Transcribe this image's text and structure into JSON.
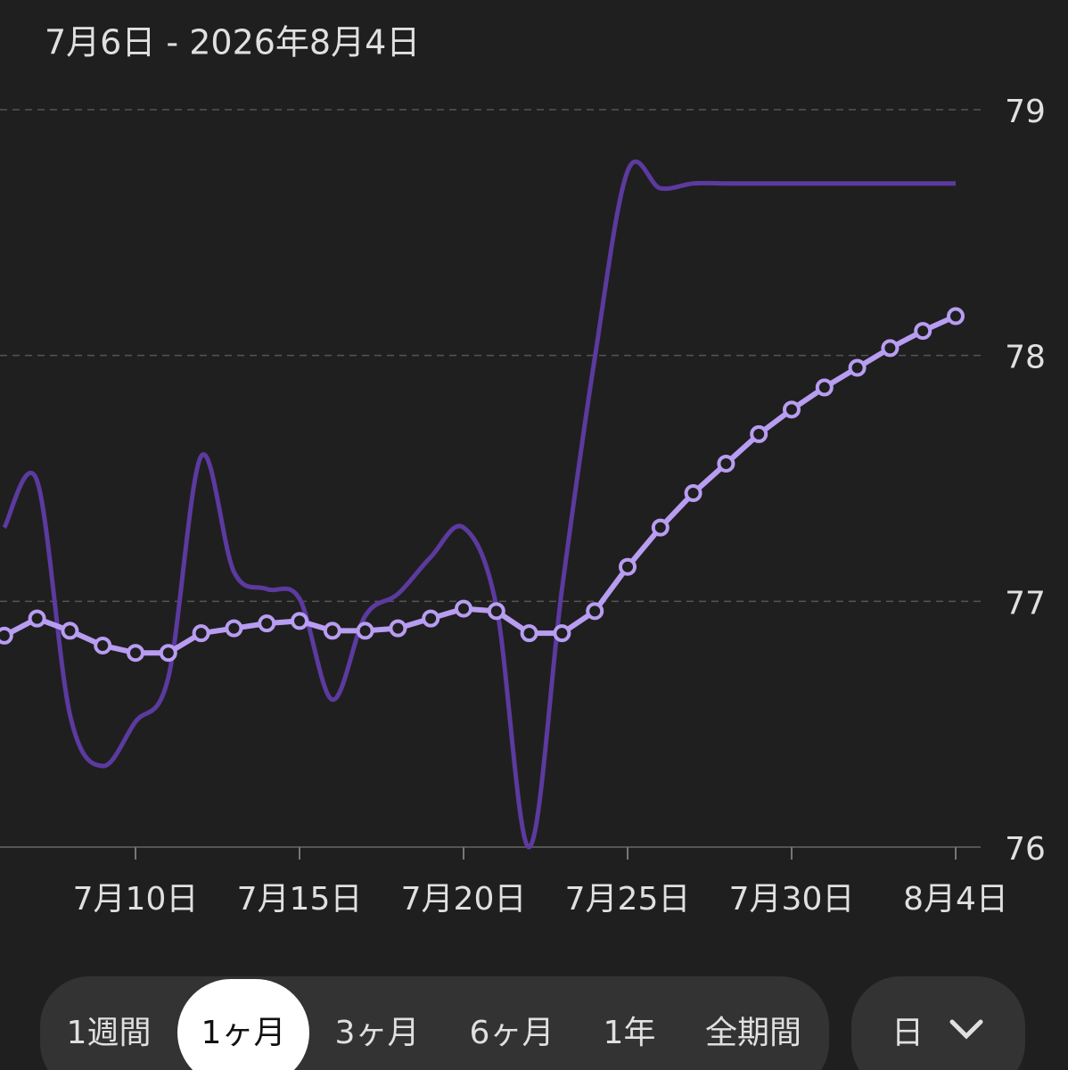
{
  "chart_data": {
    "type": "line",
    "title": "7月6日 - 2026年8月4日",
    "categories": [
      null,
      null,
      null,
      null,
      "7月10日",
      null,
      null,
      null,
      null,
      "7月15日",
      null,
      null,
      null,
      null,
      "7月20日",
      null,
      null,
      null,
      null,
      "7月25日",
      null,
      null,
      null,
      null,
      "7月30日",
      null,
      null,
      null,
      null,
      "8月4日"
    ],
    "series": [
      {
        "color": "#5c3a9f",
        "smooth": true,
        "markers": false,
        "values": [
          77.3,
          77.49,
          76.54,
          76.33,
          76.51,
          76.69,
          77.59,
          77.12,
          77.05,
          77.01,
          76.6,
          76.94,
          77.03,
          77.18,
          77.3,
          76.98,
          76.0,
          77.05,
          77.99,
          78.75,
          78.68,
          78.7,
          78.7,
          78.7,
          78.7,
          78.7,
          78.7,
          78.7,
          78.7,
          78.7
        ]
      },
      {
        "color": "#b89df2",
        "smooth": false,
        "markers": true,
        "values": [
          76.86,
          76.93,
          76.88,
          76.82,
          76.79,
          76.79,
          76.87,
          76.89,
          76.91,
          76.92,
          76.88,
          76.88,
          76.89,
          76.93,
          76.97,
          76.96,
          76.87,
          76.87,
          76.96,
          77.14,
          77.3,
          77.44,
          77.56,
          77.68,
          77.78,
          77.87,
          77.95,
          78.03,
          78.1,
          78.16
        ]
      }
    ],
    "ylim": [
      76,
      79
    ],
    "yticks": [
      76,
      77,
      78,
      79
    ],
    "grid": true
  },
  "controls": {
    "periods": [
      "1週間",
      "1ヶ月",
      "3ヶ月",
      "6ヶ月",
      "1年",
      "全期間"
    ],
    "selected_period": 1,
    "unit": "日"
  }
}
